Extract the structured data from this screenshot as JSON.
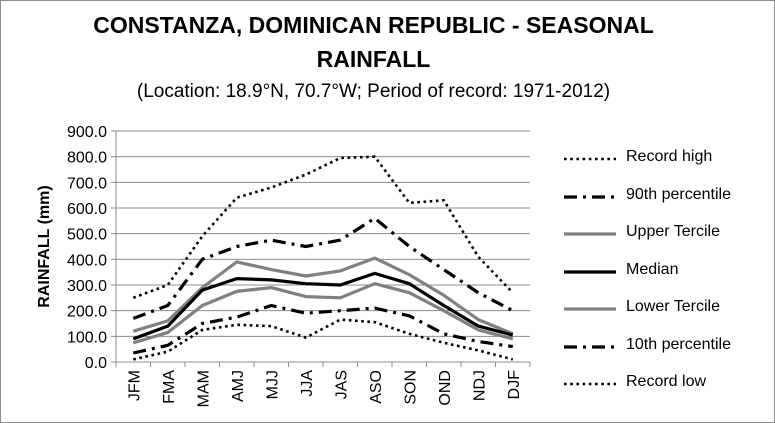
{
  "chart_data": {
    "type": "line",
    "title": "CONSTANZA, DOMINICAN REPUBLIC - SEASONAL RAINFALL",
    "title_lines": [
      "CONSTANZA, DOMINICAN REPUBLIC - SEASONAL",
      "RAINFALL"
    ],
    "subtitle": "(Location: 18.9°N, 70.7°W; Period of record: 1971-2012)",
    "xlabel": "",
    "ylabel": "RAINFALL (mm)",
    "ylim": [
      0,
      900
    ],
    "yticks": [
      "0.0",
      "100.0",
      "200.0",
      "300.0",
      "400.0",
      "500.0",
      "600.0",
      "700.0",
      "800.0",
      "900.0"
    ],
    "grid": true,
    "legend_position": "right",
    "categories": [
      "JFM",
      "FMA",
      "MAM",
      "AMJ",
      "MJJ",
      "JJA",
      "JAS",
      "ASO",
      "SON",
      "OND",
      "NDJ",
      "DJF"
    ],
    "series": [
      {
        "name": "Record high",
        "color": "#000000",
        "style": "dotted",
        "values": [
          250,
          300,
          490,
          640,
          680,
          730,
          795,
          800,
          620,
          630,
          410,
          270
        ]
      },
      {
        "name": "90th percentile",
        "color": "#000000",
        "style": "dash-dot",
        "values": [
          170,
          220,
          400,
          450,
          475,
          450,
          475,
          560,
          450,
          360,
          270,
          200
        ]
      },
      {
        "name": "Upper Tercile",
        "color": "#808080",
        "style": "solid",
        "values": [
          120,
          160,
          290,
          390,
          360,
          335,
          355,
          405,
          340,
          260,
          165,
          110
        ]
      },
      {
        "name": "Median",
        "color": "#000000",
        "style": "solid",
        "values": [
          90,
          140,
          280,
          325,
          320,
          305,
          300,
          345,
          305,
          220,
          140,
          105
        ]
      },
      {
        "name": "Lower Tercile",
        "color": "#808080",
        "style": "solid",
        "values": [
          75,
          115,
          220,
          275,
          290,
          255,
          250,
          305,
          270,
          200,
          125,
          90
        ]
      },
      {
        "name": "10th percentile",
        "color": "#000000",
        "style": "dash-dot",
        "values": [
          35,
          65,
          150,
          175,
          220,
          190,
          200,
          210,
          180,
          110,
          80,
          60
        ]
      },
      {
        "name": "Record low",
        "color": "#000000",
        "style": "dotted",
        "values": [
          10,
          40,
          125,
          145,
          140,
          95,
          165,
          155,
          110,
          75,
          45,
          10
        ]
      }
    ]
  }
}
